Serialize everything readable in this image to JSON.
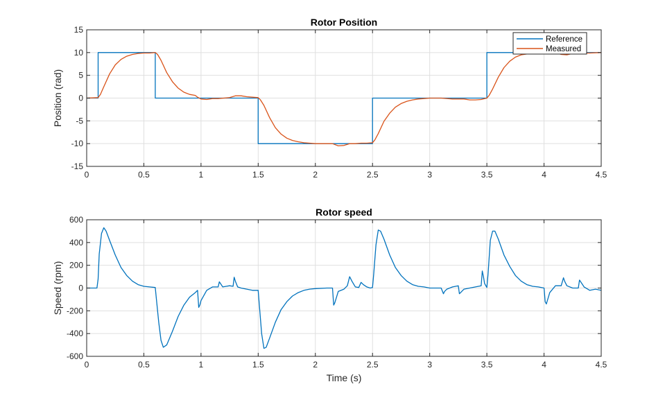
{
  "chart_data": [
    {
      "type": "line",
      "title": "Rotor Position",
      "xlabel": "",
      "ylabel": "Position (rad)",
      "xlim": [
        0,
        4.5
      ],
      "ylim": [
        -15,
        15
      ],
      "xticks": [
        0,
        0.5,
        1,
        1.5,
        2,
        2.5,
        3,
        3.5,
        4,
        4.5
      ],
      "xtick_labels": [
        "0",
        "0.5",
        "1",
        "1.5",
        "2",
        "2.5",
        "3",
        "3.5",
        "4",
        "4.5"
      ],
      "yticks": [
        -15,
        -10,
        -5,
        0,
        5,
        10,
        15
      ],
      "ytick_labels": [
        "-15",
        "-10",
        "-5",
        "0",
        "5",
        "10",
        "15"
      ],
      "grid": true,
      "legend": "top-right",
      "series": [
        {
          "name": "Reference",
          "color": "#0072BD",
          "x": [
            0,
            0.1,
            0.1,
            0.6,
            0.6,
            1.5,
            1.5,
            2.5,
            2.5,
            3.5,
            3.5,
            4.5
          ],
          "y": [
            0,
            0,
            10,
            10,
            0,
            0,
            -10,
            -10,
            0,
            0,
            10,
            10
          ]
        },
        {
          "name": "Measured",
          "color": "#D95319",
          "x": [
            0,
            0.1,
            0.12,
            0.15,
            0.2,
            0.25,
            0.3,
            0.35,
            0.4,
            0.45,
            0.5,
            0.55,
            0.6,
            0.62,
            0.65,
            0.7,
            0.75,
            0.8,
            0.85,
            0.9,
            0.95,
            0.97,
            1.0,
            1.05,
            1.1,
            1.15,
            1.2,
            1.25,
            1.3,
            1.35,
            1.4,
            1.45,
            1.5,
            1.52,
            1.55,
            1.6,
            1.65,
            1.7,
            1.75,
            1.8,
            1.85,
            1.9,
            1.95,
            2.0,
            2.1,
            2.15,
            2.2,
            2.25,
            2.3,
            2.35,
            2.4,
            2.45,
            2.5,
            2.52,
            2.55,
            2.6,
            2.65,
            2.7,
            2.75,
            2.8,
            2.85,
            2.9,
            2.95,
            3.0,
            3.1,
            3.2,
            3.25,
            3.3,
            3.35,
            3.4,
            3.45,
            3.5,
            3.52,
            3.55,
            3.6,
            3.65,
            3.7,
            3.75,
            3.8,
            3.85,
            3.9,
            3.95,
            4.0,
            4.05,
            4.1,
            4.15,
            4.2,
            4.25,
            4.3,
            4.35,
            4.4,
            4.5
          ],
          "y": [
            0,
            0.1,
            0.8,
            2.5,
            5.3,
            7.3,
            8.5,
            9.2,
            9.6,
            9.8,
            9.9,
            9.9,
            10.0,
            9.6,
            8.3,
            5.6,
            3.6,
            2.2,
            1.3,
            0.8,
            0.6,
            0.2,
            -0.2,
            -0.3,
            -0.1,
            -0.1,
            0.0,
            0.1,
            0.5,
            0.5,
            0.3,
            0.2,
            0.1,
            -0.4,
            -1.6,
            -4.3,
            -6.5,
            -7.9,
            -8.8,
            -9.3,
            -9.6,
            -9.8,
            -9.9,
            -10.0,
            -10.0,
            -10.0,
            -10.5,
            -10.4,
            -10.0,
            -10.0,
            -9.9,
            -9.9,
            -9.8,
            -9.2,
            -7.8,
            -5.1,
            -3.3,
            -2.0,
            -1.2,
            -0.7,
            -0.4,
            -0.2,
            -0.1,
            0.0,
            0.0,
            -0.2,
            -0.2,
            -0.2,
            -0.4,
            -0.4,
            -0.3,
            0.0,
            0.6,
            2.0,
            4.6,
            6.7,
            8.1,
            9.0,
            9.5,
            9.7,
            9.9,
            10.0,
            10.0,
            10.0,
            10.0,
            9.6,
            9.5,
            9.8,
            10.0,
            9.9,
            9.9,
            10.0
          ]
        }
      ]
    },
    {
      "type": "line",
      "title": "Rotor speed",
      "xlabel": "Time (s)",
      "ylabel": "Speed (rpm)",
      "xlim": [
        0,
        4.5
      ],
      "ylim": [
        -600,
        600
      ],
      "xticks": [
        0,
        0.5,
        1,
        1.5,
        2,
        2.5,
        3,
        3.5,
        4,
        4.5
      ],
      "xtick_labels": [
        "0",
        "0.5",
        "1",
        "1.5",
        "2",
        "2.5",
        "3",
        "3.5",
        "4",
        "4.5"
      ],
      "yticks": [
        -600,
        -400,
        -200,
        0,
        200,
        400,
        600
      ],
      "ytick_labels": [
        "-600",
        "-400",
        "-200",
        "0",
        "200",
        "400",
        "600"
      ],
      "grid": true,
      "legend": "none",
      "series": [
        {
          "color": "#0072BD",
          "x": [
            0,
            0.09,
            0.1,
            0.11,
            0.13,
            0.15,
            0.17,
            0.2,
            0.25,
            0.3,
            0.35,
            0.4,
            0.45,
            0.5,
            0.55,
            0.6,
            0.61,
            0.63,
            0.65,
            0.67,
            0.7,
            0.75,
            0.8,
            0.85,
            0.9,
            0.95,
            0.97,
            0.98,
            0.99,
            1.0,
            1.05,
            1.1,
            1.15,
            1.16,
            1.17,
            1.19,
            1.22,
            1.25,
            1.28,
            1.29,
            1.3,
            1.32,
            1.35,
            1.4,
            1.45,
            1.5,
            1.51,
            1.53,
            1.55,
            1.57,
            1.6,
            1.65,
            1.7,
            1.75,
            1.8,
            1.85,
            1.9,
            1.95,
            2.0,
            2.1,
            2.15,
            2.16,
            2.17,
            2.2,
            2.25,
            2.28,
            2.3,
            2.32,
            2.35,
            2.38,
            2.4,
            2.42,
            2.45,
            2.48,
            2.5,
            2.51,
            2.53,
            2.55,
            2.57,
            2.6,
            2.65,
            2.7,
            2.75,
            2.8,
            2.85,
            2.9,
            2.95,
            3.0,
            3.05,
            3.1,
            3.12,
            3.13,
            3.15,
            3.2,
            3.25,
            3.26,
            3.27,
            3.3,
            3.35,
            3.4,
            3.45,
            3.46,
            3.47,
            3.48,
            3.5,
            3.51,
            3.53,
            3.55,
            3.57,
            3.6,
            3.65,
            3.7,
            3.75,
            3.8,
            3.85,
            3.9,
            3.95,
            4.0,
            4.01,
            4.02,
            4.05,
            4.1,
            4.15,
            4.17,
            4.18,
            4.2,
            4.25,
            4.3,
            4.31,
            4.33,
            4.35,
            4.4,
            4.45,
            4.5
          ],
          "y": [
            0,
            0,
            80,
            300,
            480,
            530,
            500,
            420,
            290,
            180,
            110,
            60,
            30,
            15,
            10,
            5,
            -100,
            -300,
            -460,
            -520,
            -500,
            -380,
            -250,
            -150,
            -80,
            -40,
            -20,
            -170,
            -150,
            -110,
            -20,
            10,
            10,
            55,
            40,
            10,
            15,
            20,
            15,
            95,
            60,
            10,
            0,
            -10,
            -20,
            -20,
            -150,
            -400,
            -530,
            -520,
            -440,
            -300,
            -190,
            -120,
            -70,
            -40,
            -20,
            -10,
            -5,
            0,
            0,
            -150,
            -130,
            -30,
            -10,
            20,
            100,
            60,
            10,
            5,
            50,
            30,
            10,
            0,
            5,
            120,
            380,
            510,
            500,
            430,
            290,
            180,
            110,
            60,
            30,
            15,
            10,
            0,
            0,
            0,
            -50,
            -30,
            -10,
            10,
            20,
            -50,
            -40,
            -10,
            0,
            10,
            20,
            150,
            100,
            40,
            5,
            120,
            420,
            500,
            500,
            430,
            290,
            190,
            110,
            60,
            30,
            15,
            10,
            0,
            -120,
            -140,
            -40,
            20,
            20,
            90,
            60,
            20,
            0,
            0,
            70,
            40,
            10,
            -20,
            -10,
            -20
          ]
        }
      ]
    }
  ]
}
